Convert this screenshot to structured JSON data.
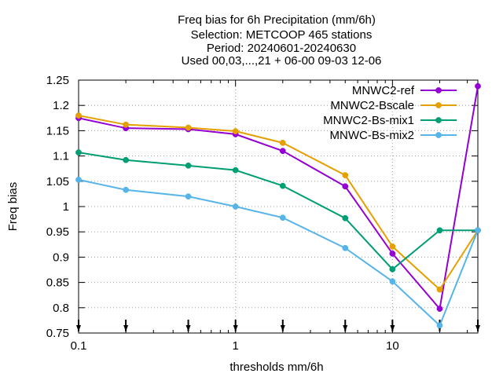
{
  "chart_data": {
    "type": "line",
    "title_lines": [
      "Freq bias  for 6h Precipitation (mm/6h)",
      "Selection: METCOOP    465 stations",
      "Period: 20240601-20240630",
      "Used 00,03,...,21 + 06-00 09-03 12-06"
    ],
    "xlabel": "thresholds mm/6h",
    "ylabel": "Freq bias",
    "x_scale": "log",
    "xlim": [
      0.1,
      35
    ],
    "ylim": [
      0.75,
      1.25
    ],
    "x_ticks": [
      {
        "value": 0.1,
        "label": "0.1"
      },
      {
        "value": 1,
        "label": "1"
      },
      {
        "value": 10,
        "label": "10"
      }
    ],
    "x_minor_ticks": [
      0.2,
      0.3,
      0.4,
      0.5,
      0.6,
      0.7,
      0.8,
      0.9,
      2,
      3,
      4,
      5,
      6,
      7,
      8,
      9,
      20,
      30
    ],
    "y_ticks": [
      "0.75",
      "0.8",
      "0.85",
      "0.9",
      "0.95",
      "1",
      "1.05",
      "1.1",
      "1.15",
      "1.2",
      "1.25"
    ],
    "grid": true,
    "legend_position": "top-right",
    "threshold_arrows": [
      0.1,
      0.2,
      0.5,
      1,
      2,
      5,
      10,
      20,
      35
    ],
    "series": [
      {
        "name": "MNWC2-ref",
        "color": "#9400d3",
        "x": [
          0.1,
          0.2,
          0.5,
          1,
          2,
          5,
          10,
          20,
          35
        ],
        "values": [
          1.175,
          1.155,
          1.153,
          1.143,
          1.11,
          1.04,
          0.907,
          0.798,
          1.238
        ]
      },
      {
        "name": "MNWC2-Bscale",
        "color": "#e69f00",
        "x": [
          0.1,
          0.2,
          0.5,
          1,
          2,
          5,
          10,
          20,
          35
        ],
        "values": [
          1.18,
          1.162,
          1.156,
          1.149,
          1.126,
          1.062,
          0.921,
          0.836,
          0.953
        ]
      },
      {
        "name": "MNWC2-Bs-mix1",
        "color": "#009e73",
        "x": [
          0.1,
          0.2,
          0.5,
          1,
          2,
          5,
          10,
          20,
          35
        ],
        "values": [
          1.107,
          1.092,
          1.081,
          1.072,
          1.041,
          0.977,
          0.876,
          0.953,
          0.953
        ]
      },
      {
        "name": "MNWC-Bs-mix2",
        "color": "#56b4e9",
        "x": [
          0.1,
          0.2,
          0.5,
          1,
          2,
          5,
          10,
          20,
          35
        ],
        "values": [
          1.053,
          1.033,
          1.02,
          1.0,
          0.978,
          0.918,
          0.852,
          0.765,
          0.953
        ]
      }
    ]
  }
}
